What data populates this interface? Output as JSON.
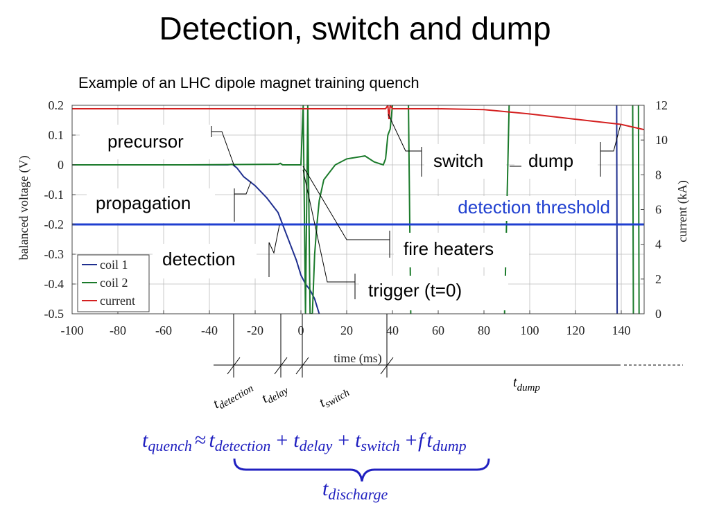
{
  "title": "Detection, switch and dump",
  "subtitle": "Example of an LHC dipole magnet training quench",
  "chart_data": {
    "type": "line",
    "xlabel": "time (ms)",
    "ylabel": "balanced voltage (V)",
    "y2label": "current (kA)",
    "xlim": [
      -100,
      150
    ],
    "xticks": [
      -100,
      -80,
      -60,
      -40,
      -20,
      0,
      20,
      40,
      60,
      80,
      100,
      120,
      140
    ],
    "ylim": [
      -0.5,
      0.2
    ],
    "yticks": [
      -0.5,
      -0.4,
      -0.3,
      -0.2,
      -0.1,
      0,
      0.1,
      0.2
    ],
    "y2lim": [
      0,
      12
    ],
    "y2ticks": [
      0,
      2,
      4,
      6,
      8,
      10,
      12
    ],
    "grid": true,
    "legend": "lower left",
    "threshold": {
      "value": -0.2,
      "label": "detection threshold",
      "color": "#1f3fd0"
    },
    "series": [
      {
        "name": "coil 1",
        "color": "#1f2f8f",
        "x": [
          -100,
          -80,
          -60,
          -40,
          -32,
          -30,
          -28,
          -25,
          -20,
          -15,
          -10,
          -8,
          -5,
          -2,
          0,
          2,
          4,
          6,
          8,
          136,
          138,
          138.2
        ],
        "values": [
          0,
          0,
          0,
          0,
          0,
          0.002,
          -0.01,
          -0.04,
          -0.07,
          -0.11,
          -0.16,
          -0.2,
          -0.26,
          -0.32,
          -0.37,
          -0.4,
          -0.42,
          -0.45,
          -0.5,
          null,
          0.2,
          -0.5
        ]
      },
      {
        "name": "coil 2",
        "color": "#1a7a2a",
        "x": [
          -100,
          -50,
          -10,
          -9,
          -8,
          0,
          1,
          2,
          3,
          4,
          5,
          6,
          7,
          8,
          10,
          15,
          20,
          28,
          32,
          36,
          37,
          38,
          39,
          40,
          45,
          47,
          48,
          60,
          89,
          91,
          120,
          145,
          145.3,
          146,
          147.5,
          147.8
        ],
        "values": [
          0,
          0,
          0.002,
          0.005,
          0,
          0,
          0.2,
          -0.5,
          0.2,
          -0.5,
          -0.5,
          -0.3,
          -0.2,
          -0.12,
          -0.05,
          0,
          0.02,
          0.03,
          0.01,
          0,
          0.02,
          0.1,
          0.12,
          0.2,
          null,
          0.2,
          -0.5,
          null,
          -0.5,
          0.2,
          null,
          0.2,
          -0.5,
          null,
          0.2,
          -0.5
        ]
      },
      {
        "name": "current",
        "color": "#d42020",
        "axis": "y2",
        "x": [
          -100,
          0,
          37,
          38,
          38.5,
          39,
          40,
          60,
          80,
          100,
          120,
          140,
          150
        ],
        "values": [
          11.8,
          11.8,
          11.8,
          12,
          11.2,
          12,
          11.8,
          11.8,
          11.75,
          11.5,
          11.2,
          10.9,
          10.6
        ]
      }
    ],
    "annotations": [
      "precursor",
      "propagation",
      "detection",
      "switch",
      "dump",
      "fire heaters",
      "trigger (t=0)"
    ]
  },
  "timing_labels": [
    {
      "symbol": "t",
      "subscript": "detection"
    },
    {
      "symbol": "t",
      "subscript": "delay"
    },
    {
      "symbol": "t",
      "subscript": "switch"
    },
    {
      "symbol": "t",
      "subscript": "dump"
    }
  ],
  "formula": [
    "t",
    "quench",
    "≈",
    "t",
    "detection",
    "+",
    "t",
    "delay",
    "+",
    "t",
    "switch",
    "+f",
    "t",
    "dump"
  ],
  "discharge": {
    "symbol": "t",
    "subscript": "discharge"
  }
}
